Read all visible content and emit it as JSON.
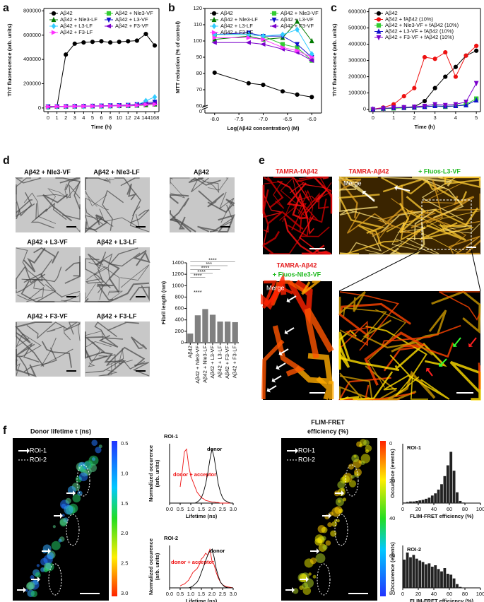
{
  "panels": [
    "a",
    "b",
    "c",
    "d",
    "e",
    "f"
  ],
  "chart_data": [
    {
      "type": "line",
      "ylabel": [
        "ThT fluorescence (arb. units)"
      ],
      "xlabel": "Time (h)",
      "categories": [
        "0",
        "1",
        "2",
        "3",
        "4",
        "5",
        "6",
        "8",
        "10",
        "12",
        "24",
        "144",
        "168"
      ],
      "ylim": [
        -30000,
        820000
      ],
      "yticks": [
        0,
        200000,
        400000,
        600000,
        800000
      ],
      "legend": "upper left",
      "series": [
        {
          "name": "Aβ42",
          "color": "#000000",
          "marker": "circle",
          "values": [
            5000,
            10000,
            440000,
            530000,
            540000,
            545000,
            550000,
            540000,
            545000,
            550000,
            555000,
            610000,
            515000
          ]
        },
        {
          "name": "Aβ42 + Nle3-VF",
          "color": "#33cc33",
          "marker": "square",
          "values": [
            10000,
            12000,
            14000,
            15000,
            15000,
            16000,
            16000,
            17000,
            18000,
            18000,
            20000,
            30000,
            35000
          ]
        },
        {
          "name": "Aβ42 + Nle3-LF",
          "color": "#007a00",
          "marker": "triangle-up",
          "values": [
            10000,
            11000,
            12000,
            13000,
            14000,
            15000,
            15000,
            16000,
            17000,
            18000,
            20000,
            25000,
            30000
          ]
        },
        {
          "name": "Aβ42 + L3-VF",
          "color": "#1010cc",
          "marker": "triangle-down",
          "values": [
            12000,
            13000,
            14000,
            15000,
            16000,
            17000,
            18000,
            20000,
            22000,
            24000,
            30000,
            45000,
            50000
          ]
        },
        {
          "name": "Aβ42 + L3-LF",
          "color": "#33ccff",
          "marker": "diamond",
          "values": [
            10000,
            11000,
            12000,
            13000,
            13000,
            14000,
            15000,
            16000,
            18000,
            20000,
            25000,
            60000,
            90000
          ]
        },
        {
          "name": "Aβ42 + F3-VF",
          "color": "#7a00cc",
          "marker": "triangle-left",
          "values": [
            12000,
            13000,
            14000,
            15000,
            15000,
            16000,
            17000,
            18000,
            20000,
            22000,
            25000,
            35000,
            40000
          ]
        },
        {
          "name": "Aβ42 + F3-LF",
          "color": "#ff33ff",
          "marker": "triangle-right",
          "values": [
            11000,
            12000,
            13000,
            14000,
            15000,
            15000,
            16000,
            17000,
            18000,
            19000,
            22000,
            28000,
            30000
          ]
        }
      ]
    },
    {
      "type": "line",
      "ylabel": [
        "MTT reduction (% of control)"
      ],
      "xlabel": "Log(Aβ42 concentration) (M)",
      "x": [
        -8.0,
        -7.3,
        -7.0,
        -6.6,
        -6.3,
        -6.0
      ],
      "xlim": [
        -8.2,
        -5.8
      ],
      "xticks": [
        {
          "value": -8,
          "label": "-8.0"
        },
        {
          "value": -7.5,
          "label": "-7.5"
        },
        {
          "value": -7,
          "label": "-7.0"
        },
        {
          "value": -6.5,
          "label": "-6.5"
        },
        {
          "value": -6,
          "label": "-6.0"
        }
      ],
      "ylim": [
        60,
        120
      ],
      "yticks": [
        60,
        70,
        80,
        90,
        100,
        110,
        120
      ],
      "axis_break_label": "0",
      "legend": "upper center",
      "series": [
        {
          "name": "Aβ42",
          "color": "#000000",
          "marker": "circle",
          "values": [
            80.5,
            74,
            73,
            69,
            67,
            65.5
          ]
        },
        {
          "name": "Aβ42 + Nle3-VF",
          "color": "#33cc33",
          "marker": "square",
          "values": [
            104,
            104,
            103,
            98,
            96,
            88
          ]
        },
        {
          "name": "Aβ42 + Nle3-LF",
          "color": "#007a00",
          "marker": "triangle-up",
          "values": [
            101,
            103,
            101,
            102,
            112,
            100
          ]
        },
        {
          "name": "Aβ42 + L3-VF",
          "color": "#1010cc",
          "marker": "triangle-down",
          "values": [
            104,
            105,
            103,
            103,
            98,
            90
          ]
        },
        {
          "name": "Aβ42 + L3-LF",
          "color": "#33ccff",
          "marker": "diamond",
          "values": [
            104,
            104,
            103,
            104,
            107,
            92
          ]
        },
        {
          "name": "Aβ42 + F3-VF",
          "color": "#7a00cc",
          "marker": "triangle-left",
          "values": [
            99,
            99,
            98,
            95,
            93,
            88
          ]
        },
        {
          "name": "Aβ42 + F3-LF",
          "color": "#ff33ff",
          "marker": "triangle-right",
          "values": [
            102,
            102,
            101,
            96,
            94,
            90
          ]
        }
      ]
    },
    {
      "type": "line",
      "ylabel": [
        "ThT fluorescence (arb. units)"
      ],
      "xlabel": "Time (h)",
      "x": [
        0,
        0.5,
        1,
        1.5,
        2,
        2.5,
        3,
        3.5,
        4,
        4.5,
        5
      ],
      "xlim": [
        -0.2,
        5.2
      ],
      "xticks": [
        0,
        1,
        2,
        3,
        4,
        5
      ],
      "ylim": [
        -15000,
        620000
      ],
      "yticks": [
        0,
        100000,
        200000,
        300000,
        400000,
        500000,
        600000
      ],
      "legend": "upper left",
      "series": [
        {
          "name": "Aβ42",
          "color": "#000000",
          "marker": "circle",
          "values": [
            0,
            5000,
            8000,
            10000,
            15000,
            50000,
            130000,
            200000,
            260000,
            330000,
            360000
          ]
        },
        {
          "name": "Aβ42 + fAβ42 (10%)",
          "color": "#ee1111",
          "marker": "circle",
          "values": [
            0,
            10000,
            30000,
            80000,
            130000,
            320000,
            310000,
            350000,
            200000,
            330000,
            390000
          ]
        },
        {
          "name": "Aβ42 + Nle3-VF + fAβ42 (10%)",
          "color": "#33cc33",
          "marker": "square",
          "values": [
            0,
            3000,
            5000,
            8000,
            10000,
            15000,
            20000,
            15000,
            20000,
            30000,
            65000
          ]
        },
        {
          "name": "Aβ42 + L3-VF + fAβ42 (10%)",
          "color": "#1010cc",
          "marker": "triangle-up",
          "values": [
            0,
            5000,
            8000,
            10000,
            12000,
            15000,
            20000,
            18000,
            20000,
            25000,
            55000
          ]
        },
        {
          "name": "Aβ42 + F3-VF + fAβ42 (10%)",
          "color": "#7a00cc",
          "marker": "triangle-down",
          "values": [
            0,
            5000,
            10000,
            12000,
            15000,
            20000,
            30000,
            25000,
            30000,
            45000,
            160000
          ]
        }
      ]
    },
    {
      "type": "bar",
      "ylabel": [
        "Fibril length (nm)"
      ],
      "categories": [
        "Aβ42",
        "Aβ42 + Nle3-VF",
        "Aβ42 + Nle3-LF",
        "Aβ42 + L3-VF",
        "Aβ42 + L3-LF",
        "Aβ42 + F3-VF",
        "Aβ42 + F3-LF"
      ],
      "values": [
        160,
        480,
        590,
        490,
        370,
        370,
        360
      ],
      "color": "#808080",
      "ylim": [
        0,
        1400
      ],
      "yticks": [
        0,
        200,
        400,
        600,
        800,
        1000,
        1200,
        1400
      ],
      "annotations": [
        "****",
        "****",
        "****",
        "****",
        "***",
        "****"
      ]
    },
    {
      "type": "line",
      "title": "ROI-1",
      "ylabel": [
        "Normalized occurence",
        "(arb. units)"
      ],
      "xlabel": "Lifetime (ns)",
      "x": [
        0.5,
        0.6,
        0.7,
        0.8,
        0.9,
        1.0,
        1.1,
        1.2,
        1.3,
        1.4,
        1.5,
        1.6,
        1.7,
        1.8,
        1.9,
        2.0,
        2.1,
        2.2,
        2.3,
        2.4,
        2.5,
        2.6,
        2.7,
        2.8,
        2.9,
        3.0
      ],
      "xlim": [
        0,
        3
      ],
      "xticks": [
        {
          "value": 0,
          "label": "0.0"
        },
        0.5,
        {
          "value": 1,
          "label": "1.0"
        },
        1.5,
        {
          "value": 2,
          "label": "2.0"
        },
        2.5,
        {
          "value": 3,
          "label": "3.0"
        }
      ],
      "ylim": [
        0,
        1.1
      ],
      "series": [
        {
          "name": "donor + acceptor",
          "color": "#ee1111",
          "values": [
            0.3,
            0.6,
            0.95,
            1.0,
            0.7,
            0.5,
            0.4,
            0.3,
            0.2,
            0.15,
            0.1,
            0.08,
            0.05,
            0.04,
            0.03,
            0.02,
            0.02,
            0.01,
            0.01,
            0,
            0,
            0,
            0,
            0,
            0,
            0
          ]
        },
        {
          "name": "donor",
          "color": "#000000",
          "values": [
            0,
            0,
            0,
            0,
            0,
            0,
            0,
            0,
            0.02,
            0.05,
            0.1,
            0.2,
            0.35,
            0.55,
            0.8,
            1.0,
            0.85,
            0.6,
            0.35,
            0.2,
            0.1,
            0.05,
            0.03,
            0.01,
            0,
            0
          ]
        }
      ]
    },
    {
      "type": "line",
      "title": "ROI-2",
      "ylabel": [
        "Normalized occurence",
        "(arb. units)"
      ],
      "xlabel": "Lifetime (ns)",
      "x": [
        0.5,
        0.6,
        0.7,
        0.8,
        0.9,
        1.0,
        1.1,
        1.2,
        1.3,
        1.4,
        1.5,
        1.6,
        1.7,
        1.8,
        1.9,
        2.0,
        2.1,
        2.2,
        2.3,
        2.4,
        2.5,
        2.6,
        2.7,
        2.8,
        2.9,
        3.0
      ],
      "xlim": [
        0,
        3
      ],
      "xticks": [
        {
          "value": 0,
          "label": "0.0"
        },
        0.5,
        {
          "value": 1,
          "label": "1.0"
        },
        1.5,
        {
          "value": 2,
          "label": "2.0"
        },
        2.5,
        {
          "value": 3,
          "label": "3.0"
        }
      ],
      "ylim": [
        0,
        1.1
      ],
      "series": [
        {
          "name": "donor + acceptor",
          "color": "#ee1111",
          "values": [
            0.05,
            0.08,
            0.1,
            0.15,
            0.2,
            0.3,
            0.4,
            0.45,
            0.5,
            0.6,
            0.75,
            0.8,
            0.9,
            0.85,
            1.0,
            0.7,
            0.6,
            0.4,
            0.25,
            0.15,
            0.08,
            0.05,
            0.03,
            0.02,
            0.01,
            0
          ]
        },
        {
          "name": "donor",
          "color": "#000000",
          "values": [
            0,
            0,
            0,
            0,
            0,
            0.02,
            0.05,
            0.1,
            0.15,
            0.25,
            0.4,
            0.55,
            0.7,
            0.85,
            0.95,
            1.0,
            0.8,
            0.5,
            0.3,
            0.15,
            0.08,
            0.03,
            0.01,
            0,
            0,
            0
          ]
        }
      ]
    },
    {
      "type": "histogram",
      "title": "ROI-1",
      "ylabel": [
        "Occurence (events)"
      ],
      "xlabel": "FLIM-FRET efficiency (%)",
      "bins": [
        0,
        4,
        8,
        12,
        16,
        20,
        24,
        28,
        32,
        36,
        40,
        44,
        48,
        52,
        56,
        60,
        64,
        68,
        72,
        76,
        80
      ],
      "counts": [
        1,
        2,
        3,
        3,
        4,
        5,
        6,
        8,
        10,
        14,
        18,
        25,
        35,
        50,
        70,
        95,
        60,
        20,
        4,
        1
      ],
      "xlim": [
        0,
        100
      ],
      "xticks": [
        0,
        20,
        40,
        60,
        80,
        100
      ],
      "ylim": [
        0,
        110
      ],
      "color": "#222222"
    },
    {
      "type": "histogram",
      "title": "ROI-2",
      "ylabel": [
        "Occurence (events)"
      ],
      "xlabel": "FLIM-FRET efficiency (%)",
      "bins": [
        0,
        4,
        8,
        12,
        16,
        20,
        24,
        28,
        32,
        36,
        40,
        44,
        48,
        52,
        56,
        60,
        64,
        68,
        72,
        76,
        80
      ],
      "counts": [
        60,
        75,
        65,
        70,
        62,
        58,
        55,
        50,
        52,
        45,
        48,
        40,
        35,
        42,
        30,
        28,
        20,
        8,
        2,
        0
      ],
      "xlim": [
        0,
        100
      ],
      "xticks": [
        0,
        20,
        40,
        60,
        80,
        100
      ],
      "ylim": [
        0,
        90
      ],
      "color": "#222222"
    }
  ],
  "micrographs": {
    "d": [
      "Aβ42 + Nle3-VF",
      "Aβ42 + Nle3-LF",
      "Aβ42",
      "Aβ42 + L3-VF",
      "Aβ42 + L3-LF",
      "Aβ42 + F3-VF",
      "Aβ42 + F3-LF"
    ],
    "e": {
      "top_left": "TAMRA-fAβ42",
      "top_right": [
        "TAMRA-Aβ42",
        "+ Fluos-L3-VF"
      ],
      "merge": "Merge",
      "bottom_left": [
        "TAMRA-Aβ42",
        "+ Fluos-Nle3-VF"
      ]
    },
    "f": {
      "lifetime_title": "Donor lifetime τ (ns)",
      "roi": [
        "ROI-1",
        "ROI-2"
      ],
      "lifetime_scale": [
        "0.5",
        "1.0",
        "1.5",
        "2.0",
        "2.5",
        "3.0"
      ],
      "fret_title": [
        "FLIM-FRET",
        "efficiency (%)"
      ],
      "fret_scale": [
        "0",
        "20",
        "40",
        "60",
        "80"
      ]
    }
  }
}
